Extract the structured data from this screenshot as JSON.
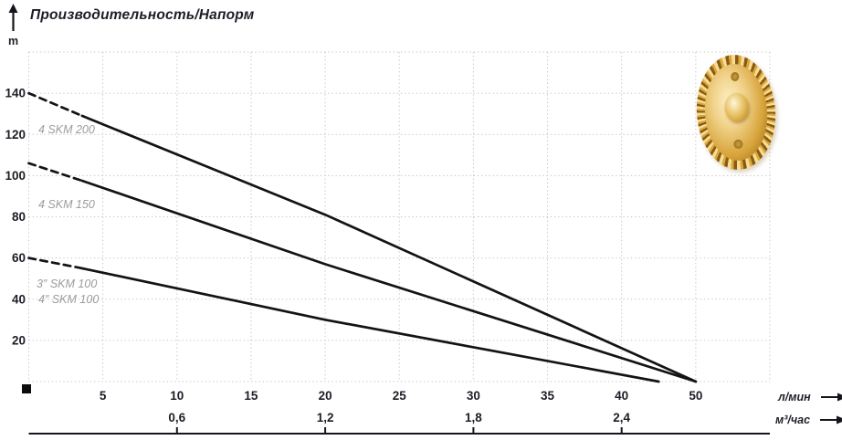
{
  "header": {
    "title": "Производительность/Напорм",
    "y_axis_unit": "m"
  },
  "chart_data": {
    "type": "line",
    "title": "Производительность/Напорм",
    "ylabel": "m",
    "xlabel_primary": "л/мин",
    "xlabel_secondary": "м³/час",
    "ylim": [
      0,
      160
    ],
    "xlim": [
      0,
      50
    ],
    "grid": true,
    "y_ticks": [
      20,
      40,
      60,
      80,
      100,
      120,
      140
    ],
    "x_ticks": [
      {
        "v": 5,
        "label": "5"
      },
      {
        "v": 10,
        "label": "10"
      },
      {
        "v": 15,
        "label": "15"
      },
      {
        "v": 20,
        "label": "20"
      },
      {
        "v": 25,
        "label": "25"
      },
      {
        "v": 30,
        "label": "30"
      },
      {
        "v": 35,
        "label": "35"
      },
      {
        "v": 40,
        "label": "40"
      },
      {
        "v": 50,
        "label": "50"
      }
    ],
    "x2_ticks": [
      {
        "v": 10,
        "label": "0,6"
      },
      {
        "v": 20,
        "label": "1,2"
      },
      {
        "v": 30,
        "label": "1,8"
      },
      {
        "v": 40,
        "label": "2,4"
      }
    ],
    "series": [
      {
        "name": "4 SKM 200",
        "labels": [
          "4 SKM 200"
        ],
        "max_head_m": 140,
        "max_flow_lmin": 50,
        "dashed": [
          [
            0,
            140
          ],
          [
            3.6,
            129
          ]
        ],
        "solid": [
          [
            3.6,
            129
          ],
          [
            20,
            81
          ],
          [
            50,
            0
          ]
        ]
      },
      {
        "name": "4 SKM 150",
        "labels": [
          "4 SKM 150"
        ],
        "max_head_m": 106,
        "max_flow_lmin": 50,
        "dashed": [
          [
            0,
            106
          ],
          [
            3.6,
            97.5
          ]
        ],
        "solid": [
          [
            3.6,
            97.5
          ],
          [
            20,
            57
          ],
          [
            50,
            0
          ]
        ]
      },
      {
        "name": "SKM 100",
        "labels": [
          "3″ SKM 100",
          "4″ SKM 100"
        ],
        "max_head_m": 60,
        "max_flow_lmin": 45,
        "dashed": [
          [
            0,
            60
          ],
          [
            3.6,
            55
          ]
        ],
        "solid": [
          [
            3.6,
            55
          ],
          [
            20,
            30
          ],
          [
            45,
            0
          ]
        ]
      }
    ],
    "colors": {
      "curve": "#131313",
      "grid": "#c7c7c7",
      "series_label": "#9c9ca0",
      "axis_text": "#1d1d27",
      "impeller_brass": "#d9a83c"
    }
  }
}
